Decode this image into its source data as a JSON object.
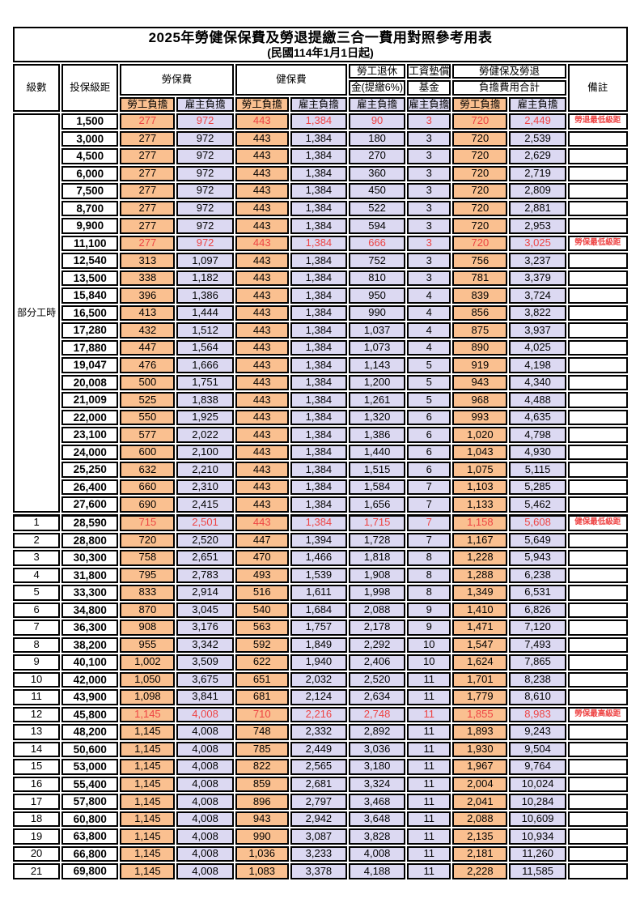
{
  "title": "2025年勞健保保費及勞退提繳三合一費用對照參考用表",
  "subtitle": "(民國114年1月1日起)",
  "header": {
    "level": "級數",
    "bracket": "投保級距",
    "labor_fee": "勞保費",
    "health_fee": "健保費",
    "pension_line1": "勞工退休",
    "pension_line2": "金(提繳6%)",
    "wage_fund_line1": "工資墊償",
    "wage_fund_line2": "基金",
    "total_line1": "勞健保及勞退",
    "total_line2": "負擔費用合計",
    "remark": "備註",
    "worker_label": "勞工負擔",
    "employer_label": "雇主負擔"
  },
  "part_time_label": "部分工時",
  "colors": {
    "worker_bg": "#fac090",
    "employer_bg": "#dcd9f2",
    "highlight_text": "#ee4444",
    "border": "#000000"
  },
  "chart_data": {
    "type": "table",
    "title": "2025年勞健保保費及勞退提繳三合一費用對照參考用表",
    "columns": [
      "級數",
      "投保級距",
      "勞保費-勞工負擔",
      "勞保費-雇主負擔",
      "健保費-勞工負擔",
      "健保費-雇主負擔",
      "勞工退休金(提繳6%)-雇主負擔",
      "工資墊償基金-雇主負擔",
      "合計-勞工負擔",
      "合計-雇主負擔",
      "備註"
    ]
  },
  "rows": [
    {
      "level": "",
      "bracket": "1,500",
      "li_w": "277",
      "li_e": "972",
      "hi_w": "443",
      "hi_e": "1,384",
      "pension": "90",
      "fund": "3",
      "tot_w": "720",
      "tot_e": "2,449",
      "remark": "勞退最低級距",
      "red": true
    },
    {
      "level": "",
      "bracket": "3,000",
      "li_w": "277",
      "li_e": "972",
      "hi_w": "443",
      "hi_e": "1,384",
      "pension": "180",
      "fund": "3",
      "tot_w": "720",
      "tot_e": "2,539",
      "remark": "",
      "red": false
    },
    {
      "level": "",
      "bracket": "4,500",
      "li_w": "277",
      "li_e": "972",
      "hi_w": "443",
      "hi_e": "1,384",
      "pension": "270",
      "fund": "3",
      "tot_w": "720",
      "tot_e": "2,629",
      "remark": "",
      "red": false
    },
    {
      "level": "",
      "bracket": "6,000",
      "li_w": "277",
      "li_e": "972",
      "hi_w": "443",
      "hi_e": "1,384",
      "pension": "360",
      "fund": "3",
      "tot_w": "720",
      "tot_e": "2,719",
      "remark": "",
      "red": false
    },
    {
      "level": "",
      "bracket": "7,500",
      "li_w": "277",
      "li_e": "972",
      "hi_w": "443",
      "hi_e": "1,384",
      "pension": "450",
      "fund": "3",
      "tot_w": "720",
      "tot_e": "2,809",
      "remark": "",
      "red": false
    },
    {
      "level": "",
      "bracket": "8,700",
      "li_w": "277",
      "li_e": "972",
      "hi_w": "443",
      "hi_e": "1,384",
      "pension": "522",
      "fund": "3",
      "tot_w": "720",
      "tot_e": "2,881",
      "remark": "",
      "red": false
    },
    {
      "level": "",
      "bracket": "9,900",
      "li_w": "277",
      "li_e": "972",
      "hi_w": "443",
      "hi_e": "1,384",
      "pension": "594",
      "fund": "3",
      "tot_w": "720",
      "tot_e": "2,953",
      "remark": "",
      "red": false
    },
    {
      "level": "",
      "bracket": "11,100",
      "li_w": "277",
      "li_e": "972",
      "hi_w": "443",
      "hi_e": "1,384",
      "pension": "666",
      "fund": "3",
      "tot_w": "720",
      "tot_e": "3,025",
      "remark": "勞保最低級距",
      "red": true
    },
    {
      "level": "",
      "bracket": "12,540",
      "li_w": "313",
      "li_e": "1,097",
      "hi_w": "443",
      "hi_e": "1,384",
      "pension": "752",
      "fund": "3",
      "tot_w": "756",
      "tot_e": "3,237",
      "remark": "",
      "red": false
    },
    {
      "level": "",
      "bracket": "13,500",
      "li_w": "338",
      "li_e": "1,182",
      "hi_w": "443",
      "hi_e": "1,384",
      "pension": "810",
      "fund": "3",
      "tot_w": "781",
      "tot_e": "3,379",
      "remark": "",
      "red": false
    },
    {
      "level": "",
      "bracket": "15,840",
      "li_w": "396",
      "li_e": "1,386",
      "hi_w": "443",
      "hi_e": "1,384",
      "pension": "950",
      "fund": "4",
      "tot_w": "839",
      "tot_e": "3,724",
      "remark": "",
      "red": false
    },
    {
      "level": "",
      "bracket": "16,500",
      "li_w": "413",
      "li_e": "1,444",
      "hi_w": "443",
      "hi_e": "1,384",
      "pension": "990",
      "fund": "4",
      "tot_w": "856",
      "tot_e": "3,822",
      "remark": "",
      "red": false
    },
    {
      "level": "",
      "bracket": "17,280",
      "li_w": "432",
      "li_e": "1,512",
      "hi_w": "443",
      "hi_e": "1,384",
      "pension": "1,037",
      "fund": "4",
      "tot_w": "875",
      "tot_e": "3,937",
      "remark": "",
      "red": false
    },
    {
      "level": "",
      "bracket": "17,880",
      "li_w": "447",
      "li_e": "1,564",
      "hi_w": "443",
      "hi_e": "1,384",
      "pension": "1,073",
      "fund": "4",
      "tot_w": "890",
      "tot_e": "4,025",
      "remark": "",
      "red": false
    },
    {
      "level": "",
      "bracket": "19,047",
      "li_w": "476",
      "li_e": "1,666",
      "hi_w": "443",
      "hi_e": "1,384",
      "pension": "1,143",
      "fund": "5",
      "tot_w": "919",
      "tot_e": "4,198",
      "remark": "",
      "red": false
    },
    {
      "level": "",
      "bracket": "20,008",
      "li_w": "500",
      "li_e": "1,751",
      "hi_w": "443",
      "hi_e": "1,384",
      "pension": "1,200",
      "fund": "5",
      "tot_w": "943",
      "tot_e": "4,340",
      "remark": "",
      "red": false
    },
    {
      "level": "",
      "bracket": "21,009",
      "li_w": "525",
      "li_e": "1,838",
      "hi_w": "443",
      "hi_e": "1,384",
      "pension": "1,261",
      "fund": "5",
      "tot_w": "968",
      "tot_e": "4,488",
      "remark": "",
      "red": false
    },
    {
      "level": "",
      "bracket": "22,000",
      "li_w": "550",
      "li_e": "1,925",
      "hi_w": "443",
      "hi_e": "1,384",
      "pension": "1,320",
      "fund": "6",
      "tot_w": "993",
      "tot_e": "4,635",
      "remark": "",
      "red": false
    },
    {
      "level": "",
      "bracket": "23,100",
      "li_w": "577",
      "li_e": "2,022",
      "hi_w": "443",
      "hi_e": "1,384",
      "pension": "1,386",
      "fund": "6",
      "tot_w": "1,020",
      "tot_e": "4,798",
      "remark": "",
      "red": false
    },
    {
      "level": "",
      "bracket": "24,000",
      "li_w": "600",
      "li_e": "2,100",
      "hi_w": "443",
      "hi_e": "1,384",
      "pension": "1,440",
      "fund": "6",
      "tot_w": "1,043",
      "tot_e": "4,930",
      "remark": "",
      "red": false
    },
    {
      "level": "",
      "bracket": "25,250",
      "li_w": "632",
      "li_e": "2,210",
      "hi_w": "443",
      "hi_e": "1,384",
      "pension": "1,515",
      "fund": "6",
      "tot_w": "1,075",
      "tot_e": "5,115",
      "remark": "",
      "red": false
    },
    {
      "level": "",
      "bracket": "26,400",
      "li_w": "660",
      "li_e": "2,310",
      "hi_w": "443",
      "hi_e": "1,384",
      "pension": "1,584",
      "fund": "7",
      "tot_w": "1,103",
      "tot_e": "5,285",
      "remark": "",
      "red": false
    },
    {
      "level": "",
      "bracket": "27,600",
      "li_w": "690",
      "li_e": "2,415",
      "hi_w": "443",
      "hi_e": "1,384",
      "pension": "1,656",
      "fund": "7",
      "tot_w": "1,133",
      "tot_e": "5,462",
      "remark": "",
      "red": false
    },
    {
      "level": "1",
      "bracket": "28,590",
      "li_w": "715",
      "li_e": "2,501",
      "hi_w": "443",
      "hi_e": "1,384",
      "pension": "1,715",
      "fund": "7",
      "tot_w": "1,158",
      "tot_e": "5,608",
      "remark": "健保最低級距",
      "red": true
    },
    {
      "level": "2",
      "bracket": "28,800",
      "li_w": "720",
      "li_e": "2,520",
      "hi_w": "447",
      "hi_e": "1,394",
      "pension": "1,728",
      "fund": "7",
      "tot_w": "1,167",
      "tot_e": "5,649",
      "remark": "",
      "red": false
    },
    {
      "level": "3",
      "bracket": "30,300",
      "li_w": "758",
      "li_e": "2,651",
      "hi_w": "470",
      "hi_e": "1,466",
      "pension": "1,818",
      "fund": "8",
      "tot_w": "1,228",
      "tot_e": "5,943",
      "remark": "",
      "red": false
    },
    {
      "level": "4",
      "bracket": "31,800",
      "li_w": "795",
      "li_e": "2,783",
      "hi_w": "493",
      "hi_e": "1,539",
      "pension": "1,908",
      "fund": "8",
      "tot_w": "1,288",
      "tot_e": "6,238",
      "remark": "",
      "red": false
    },
    {
      "level": "5",
      "bracket": "33,300",
      "li_w": "833",
      "li_e": "2,914",
      "hi_w": "516",
      "hi_e": "1,611",
      "pension": "1,998",
      "fund": "8",
      "tot_w": "1,349",
      "tot_e": "6,531",
      "remark": "",
      "red": false
    },
    {
      "level": "6",
      "bracket": "34,800",
      "li_w": "870",
      "li_e": "3,045",
      "hi_w": "540",
      "hi_e": "1,684",
      "pension": "2,088",
      "fund": "9",
      "tot_w": "1,410",
      "tot_e": "6,826",
      "remark": "",
      "red": false
    },
    {
      "level": "7",
      "bracket": "36,300",
      "li_w": "908",
      "li_e": "3,176",
      "hi_w": "563",
      "hi_e": "1,757",
      "pension": "2,178",
      "fund": "9",
      "tot_w": "1,471",
      "tot_e": "7,120",
      "remark": "",
      "red": false
    },
    {
      "level": "8",
      "bracket": "38,200",
      "li_w": "955",
      "li_e": "3,342",
      "hi_w": "592",
      "hi_e": "1,849",
      "pension": "2,292",
      "fund": "10",
      "tot_w": "1,547",
      "tot_e": "7,493",
      "remark": "",
      "red": false
    },
    {
      "level": "9",
      "bracket": "40,100",
      "li_w": "1,002",
      "li_e": "3,509",
      "hi_w": "622",
      "hi_e": "1,940",
      "pension": "2,406",
      "fund": "10",
      "tot_w": "1,624",
      "tot_e": "7,865",
      "remark": "",
      "red": false
    },
    {
      "level": "10",
      "bracket": "42,000",
      "li_w": "1,050",
      "li_e": "3,675",
      "hi_w": "651",
      "hi_e": "2,032",
      "pension": "2,520",
      "fund": "11",
      "tot_w": "1,701",
      "tot_e": "8,238",
      "remark": "",
      "red": false
    },
    {
      "level": "11",
      "bracket": "43,900",
      "li_w": "1,098",
      "li_e": "3,841",
      "hi_w": "681",
      "hi_e": "2,124",
      "pension": "2,634",
      "fund": "11",
      "tot_w": "1,779",
      "tot_e": "8,610",
      "remark": "",
      "red": false
    },
    {
      "level": "12",
      "bracket": "45,800",
      "li_w": "1,145",
      "li_e": "4,008",
      "hi_w": "710",
      "hi_e": "2,216",
      "pension": "2,748",
      "fund": "11",
      "tot_w": "1,855",
      "tot_e": "8,983",
      "remark": "勞保最高級距",
      "red": true
    },
    {
      "level": "13",
      "bracket": "48,200",
      "li_w": "1,145",
      "li_e": "4,008",
      "hi_w": "748",
      "hi_e": "2,332",
      "pension": "2,892",
      "fund": "11",
      "tot_w": "1,893",
      "tot_e": "9,243",
      "remark": "",
      "red": false
    },
    {
      "level": "14",
      "bracket": "50,600",
      "li_w": "1,145",
      "li_e": "4,008",
      "hi_w": "785",
      "hi_e": "2,449",
      "pension": "3,036",
      "fund": "11",
      "tot_w": "1,930",
      "tot_e": "9,504",
      "remark": "",
      "red": false
    },
    {
      "level": "15",
      "bracket": "53,000",
      "li_w": "1,145",
      "li_e": "4,008",
      "hi_w": "822",
      "hi_e": "2,565",
      "pension": "3,180",
      "fund": "11",
      "tot_w": "1,967",
      "tot_e": "9,764",
      "remark": "",
      "red": false
    },
    {
      "level": "16",
      "bracket": "55,400",
      "li_w": "1,145",
      "li_e": "4,008",
      "hi_w": "859",
      "hi_e": "2,681",
      "pension": "3,324",
      "fund": "11",
      "tot_w": "2,004",
      "tot_e": "10,024",
      "remark": "",
      "red": false
    },
    {
      "level": "17",
      "bracket": "57,800",
      "li_w": "1,145",
      "li_e": "4,008",
      "hi_w": "896",
      "hi_e": "2,797",
      "pension": "3,468",
      "fund": "11",
      "tot_w": "2,041",
      "tot_e": "10,284",
      "remark": "",
      "red": false
    },
    {
      "level": "18",
      "bracket": "60,800",
      "li_w": "1,145",
      "li_e": "4,008",
      "hi_w": "943",
      "hi_e": "2,942",
      "pension": "3,648",
      "fund": "11",
      "tot_w": "2,088",
      "tot_e": "10,609",
      "remark": "",
      "red": false
    },
    {
      "level": "19",
      "bracket": "63,800",
      "li_w": "1,145",
      "li_e": "4,008",
      "hi_w": "990",
      "hi_e": "3,087",
      "pension": "3,828",
      "fund": "11",
      "tot_w": "2,135",
      "tot_e": "10,934",
      "remark": "",
      "red": false
    },
    {
      "level": "20",
      "bracket": "66,800",
      "li_w": "1,145",
      "li_e": "4,008",
      "hi_w": "1,036",
      "hi_e": "3,233",
      "pension": "4,008",
      "fund": "11",
      "tot_w": "2,181",
      "tot_e": "11,260",
      "remark": "",
      "red": false
    },
    {
      "level": "21",
      "bracket": "69,800",
      "li_w": "1,145",
      "li_e": "4,008",
      "hi_w": "1,083",
      "hi_e": "3,378",
      "pension": "4,188",
      "fund": "11",
      "tot_w": "2,228",
      "tot_e": "11,585",
      "remark": "",
      "red": false
    }
  ]
}
